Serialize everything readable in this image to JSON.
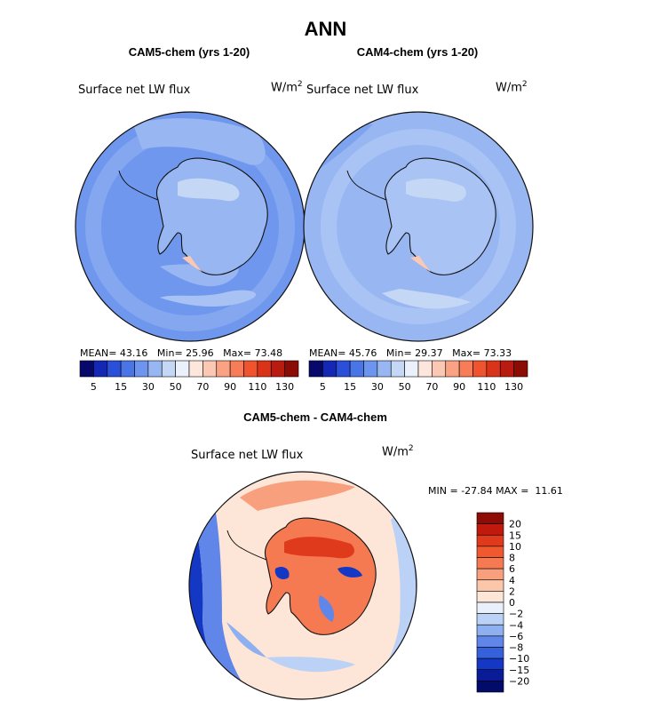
{
  "figure": {
    "title": "ANN"
  },
  "chart_data": [
    {
      "type": "heatmap",
      "title": "CAM5-chem (yrs 1-20)",
      "variable": "Surface net LW flux",
      "units": "W/m2",
      "stats": {
        "mean_label": "MEAN=",
        "mean": "43.16",
        "min_label": "Min=",
        "min": "25.96",
        "max_label": "Max=",
        "max": "73.48"
      },
      "colorbar": {
        "orientation": "horizontal",
        "tick_labels": [
          "5",
          "15",
          "30",
          "50",
          "70",
          "90",
          "110",
          "130"
        ],
        "colors": [
          "#08086b",
          "#1428b4",
          "#2a4fd8",
          "#4a75e6",
          "#6d95ee",
          "#98b6f2",
          "#c4d7f5",
          "#eaf1fb",
          "#fde7dd",
          "#fbc8b3",
          "#f9a284",
          "#f77c58",
          "#f0542f",
          "#d9331a",
          "#b81c10",
          "#8a0c05"
        ]
      }
    },
    {
      "type": "heatmap",
      "title": "CAM4-chem (yrs 1-20)",
      "variable": "Surface net LW flux",
      "units": "W/m2",
      "stats": {
        "mean_label": "MEAN=",
        "mean": "45.76",
        "min_label": "Min=",
        "min": "29.37",
        "max_label": "Max=",
        "max": "73.33"
      },
      "colorbar": {
        "orientation": "horizontal",
        "tick_labels": [
          "5",
          "15",
          "30",
          "50",
          "70",
          "90",
          "110",
          "130"
        ],
        "colors": [
          "#08086b",
          "#1428b4",
          "#2a4fd8",
          "#4a75e6",
          "#6d95ee",
          "#98b6f2",
          "#c4d7f5",
          "#eaf1fb",
          "#fde7dd",
          "#fbc8b3",
          "#f9a284",
          "#f77c58",
          "#f0542f",
          "#d9331a",
          "#b81c10",
          "#8a0c05"
        ]
      }
    },
    {
      "type": "heatmap",
      "title": "CAM5-chem - CAM4-chem",
      "variable": "Surface net LW flux",
      "units": "W/m2",
      "stats": {
        "min_label": "MIN =",
        "min": "-27.84",
        "max_label": "MAX =",
        "max": "11.61"
      },
      "colorbar": {
        "orientation": "vertical",
        "tick_labels": [
          "20",
          "15",
          "10",
          "8",
          "6",
          "4",
          "2",
          "0",
          "−2",
          "−4",
          "−6",
          "−8",
          "−10",
          "−15",
          "−20"
        ],
        "colors": [
          "#8f0c06",
          "#c01a0d",
          "#e03a1d",
          "#f2582e",
          "#f57a52",
          "#f8a07d",
          "#fbc6aa",
          "#fde5d7",
          "#e9f0fb",
          "#bcd1f6",
          "#8fb0f0",
          "#5f86e8",
          "#3561dd",
          "#1438c4",
          "#0a1b98",
          "#020b6a"
        ]
      }
    }
  ]
}
